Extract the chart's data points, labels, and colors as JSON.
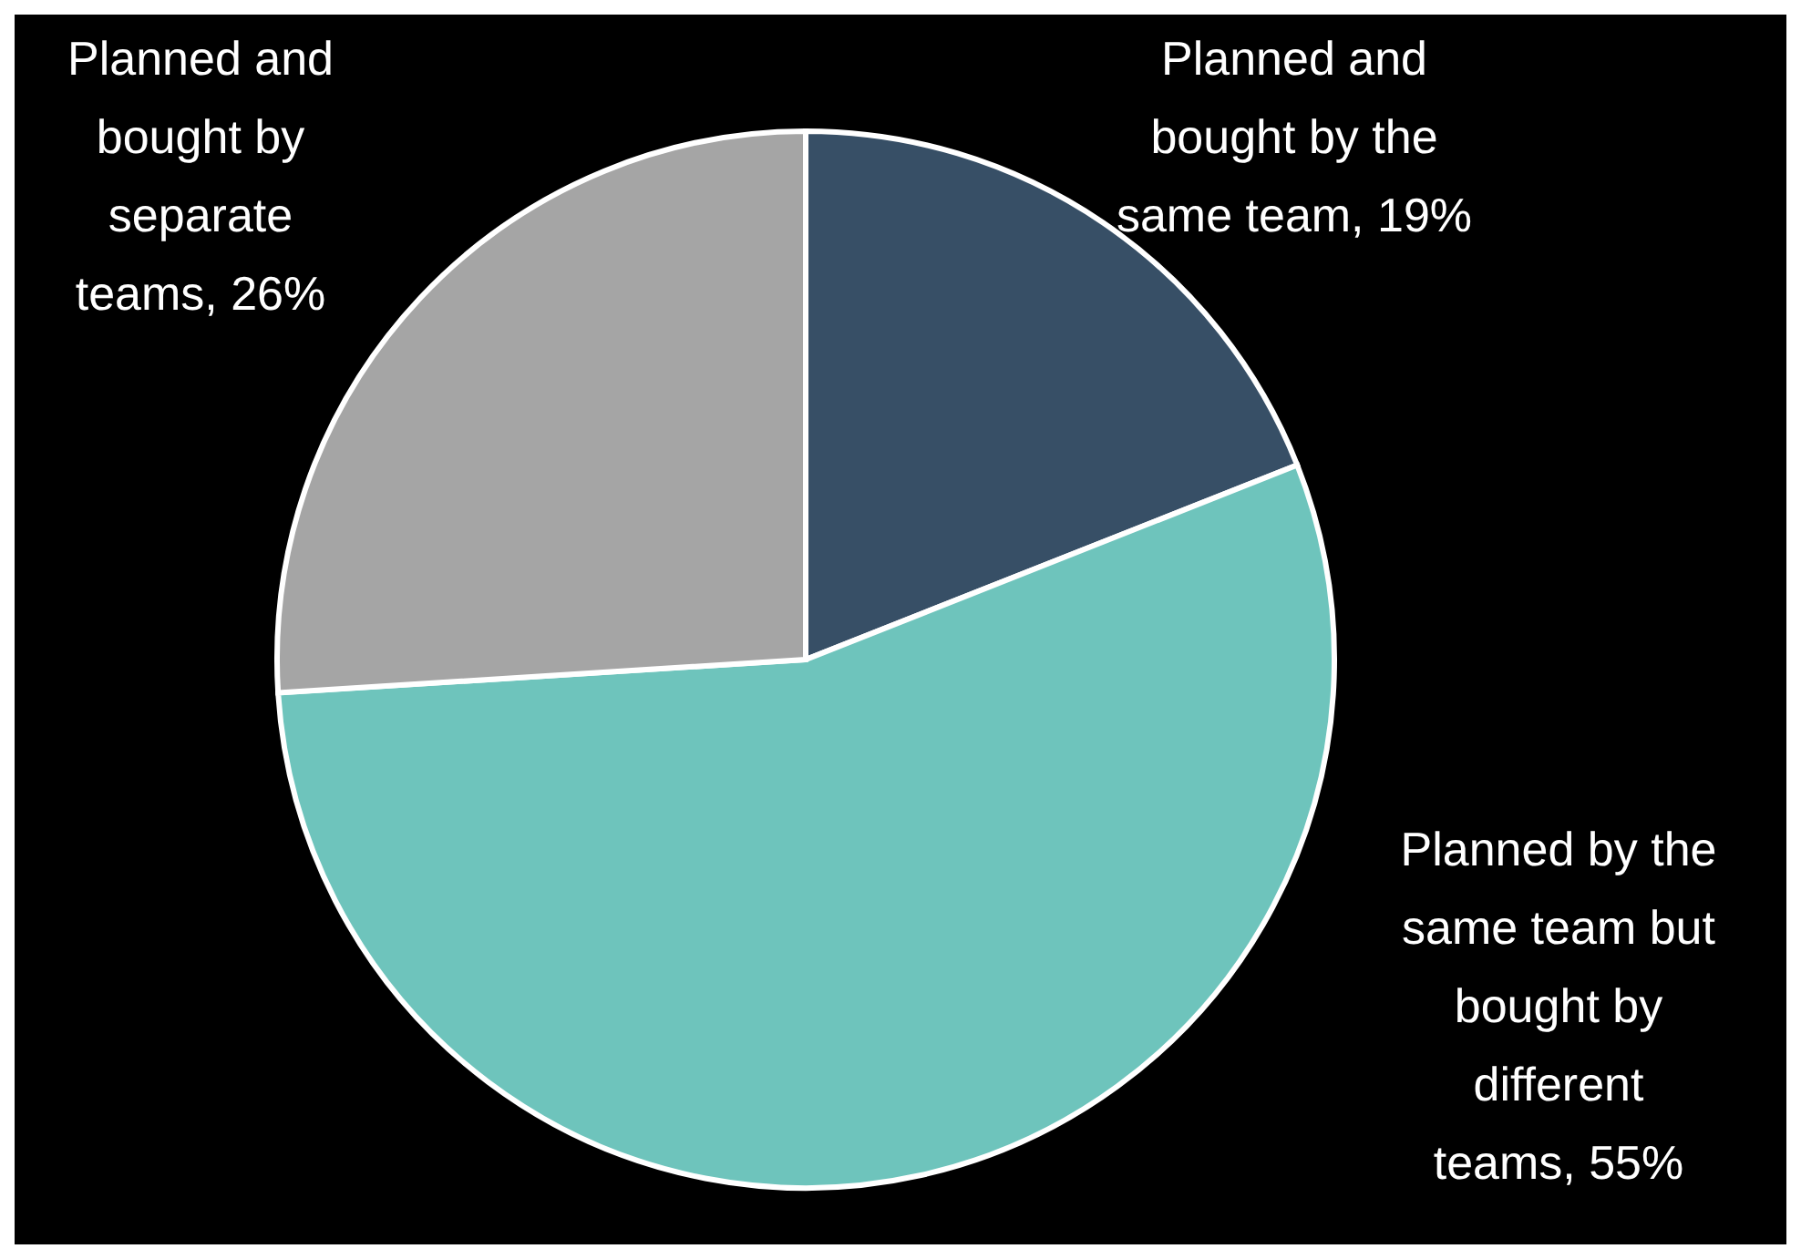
{
  "chart_data": {
    "type": "pie",
    "categories": [
      "Planned and bought by the same team",
      "Planned by the same team but bought by different teams",
      "Planned and bought by separate teams"
    ],
    "values": [
      19,
      55,
      26
    ],
    "value_labels": [
      "19%",
      "55%",
      "26%"
    ],
    "colors": [
      "#374f66",
      "#6ec4bc",
      "#a5a5a5"
    ],
    "legend": false
  }
}
